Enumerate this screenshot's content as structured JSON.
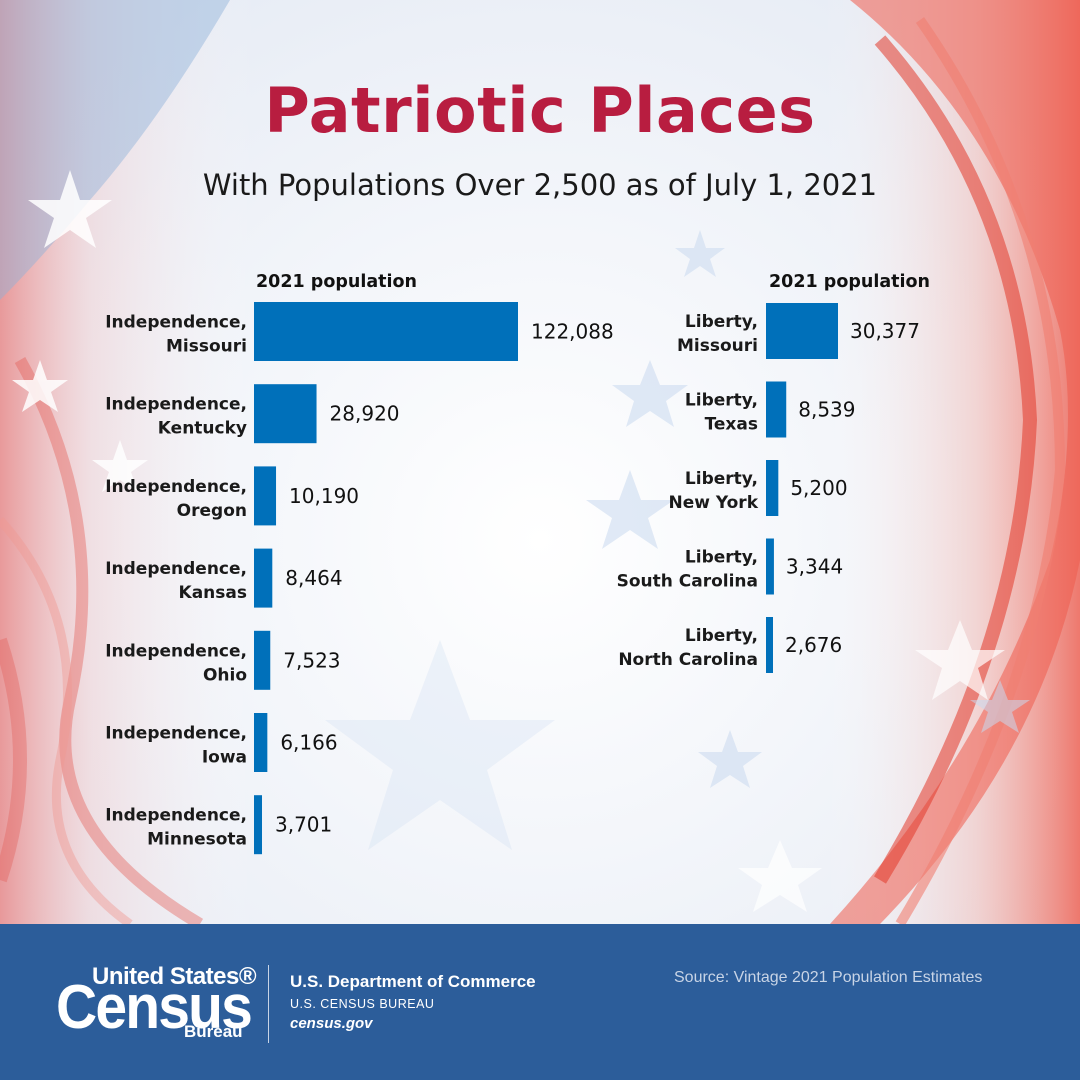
{
  "title": "Patriotic Places",
  "subtitle": "With Populations Over 2,500 as of July 1, 2021",
  "colors": {
    "bar": "#0070ba",
    "title": "#b81d40",
    "footer": "#2c5d9a"
  },
  "chart_data": [
    {
      "type": "bar",
      "orientation": "horizontal",
      "column_header": "2021 population",
      "categories": [
        [
          "Independence,",
          "Missouri"
        ],
        [
          "Independence,",
          "Kentucky"
        ],
        [
          "Independence,",
          "Oregon"
        ],
        [
          "Independence,",
          "Kansas"
        ],
        [
          "Independence,",
          "Ohio"
        ],
        [
          "Independence,",
          "Iowa"
        ],
        [
          "Independence,",
          "Minnesota"
        ]
      ],
      "values": [
        122088,
        28920,
        10190,
        8464,
        7523,
        6166,
        3701
      ],
      "value_labels": [
        "122,088",
        "28,920",
        "10,190",
        "8,464",
        "7,523",
        "6,166",
        "3,701"
      ]
    },
    {
      "type": "bar",
      "orientation": "horizontal",
      "column_header": "2021 population",
      "categories": [
        [
          "Liberty,",
          "Missouri"
        ],
        [
          "Liberty,",
          "Texas"
        ],
        [
          "Liberty,",
          "New York"
        ],
        [
          "Liberty,",
          "South Carolina"
        ],
        [
          "Liberty,",
          "North Carolina"
        ]
      ],
      "values": [
        30377,
        8539,
        5200,
        3344,
        2676
      ],
      "value_labels": [
        "30,377",
        "8,539",
        "5,200",
        "3,344",
        "2,676"
      ]
    }
  ],
  "footer": {
    "logo": {
      "line1": "United States®",
      "line2": "Census",
      "line3": "Bureau"
    },
    "department": "U.S. Department of Commerce",
    "bureau": "U.S. CENSUS BUREAU",
    "website": "census.gov",
    "source": "Source: Vintage 2021 Population Estimates"
  }
}
